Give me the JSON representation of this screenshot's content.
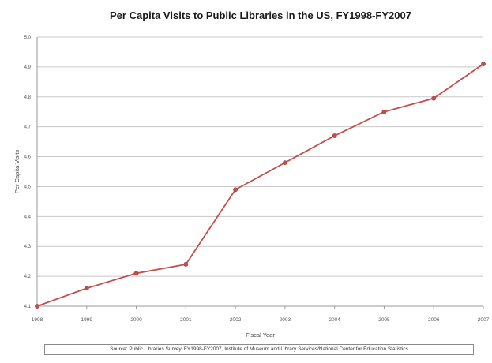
{
  "chart_data": {
    "type": "line",
    "title": "Per Capita Visits to Public Libraries in the US, FY1998-FY2007",
    "xlabel": "Fiscal Year",
    "ylabel": "Per Capita Visits",
    "categories": [
      "1998",
      "1999",
      "2000",
      "2001",
      "2002",
      "2003",
      "2004",
      "2005",
      "2006",
      "2007"
    ],
    "values": [
      4.1,
      4.16,
      4.21,
      4.24,
      4.49,
      4.58,
      4.67,
      4.75,
      4.795,
      4.91
    ],
    "ylim": [
      4.1,
      5.0
    ],
    "yticks": [
      "4.1",
      "4.2",
      "4.3",
      "4.4",
      "4.5",
      "4.6",
      "4.7",
      "4.8",
      "4.9",
      "5.0"
    ],
    "grid": true,
    "line_color": "#c0504d",
    "source_note": "Source: Public Libraries Survey, FY1998-FY2007, Institute of Museum and Library Services/National Center for Education Statistics"
  }
}
